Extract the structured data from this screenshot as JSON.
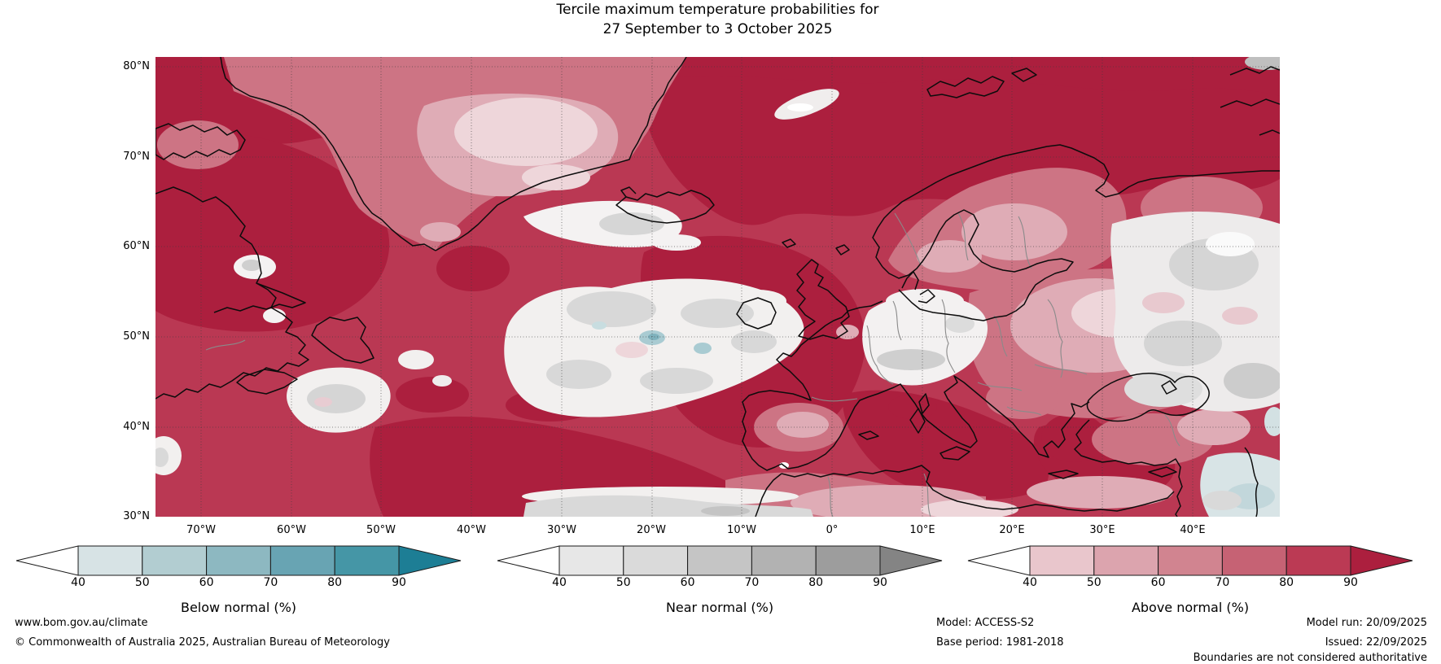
{
  "title": {
    "line1": "Tercile maximum temperature probabilities for",
    "line2": "27 September to 3 October 2025"
  },
  "map": {
    "lat_ticks": [
      "80°N",
      "70°N",
      "60°N",
      "50°N",
      "40°N",
      "30°N"
    ],
    "lon_ticks": [
      "70°W",
      "60°W",
      "50°W",
      "40°W",
      "30°W",
      "20°W",
      "10°W",
      "0°",
      "10°E",
      "20°E",
      "30°E",
      "40°E"
    ]
  },
  "legend": {
    "bars": [
      {
        "id": "below",
        "title": "Below normal (%)",
        "ticks": [
          "40",
          "50",
          "60",
          "70",
          "80",
          "90"
        ],
        "arrow_low_color": "#ffffff",
        "segment_colors": [
          "#d7e3e5",
          "#b2cdd1",
          "#8db8c1",
          "#68a4b3",
          "#4596a6",
          "#1d7e95"
        ]
      },
      {
        "id": "near",
        "title": "Near normal (%)",
        "ticks": [
          "40",
          "50",
          "60",
          "70",
          "80",
          "90"
        ],
        "arrow_low_color": "#ffffff",
        "segment_colors": [
          "#e7e7e7",
          "#dadada",
          "#c5c5c5",
          "#b2b2b2",
          "#9d9d9d",
          "#848484"
        ]
      },
      {
        "id": "above",
        "title": "Above normal (%)",
        "ticks": [
          "40",
          "50",
          "60",
          "70",
          "80",
          "90"
        ],
        "arrow_low_color": "#ffffff",
        "segment_colors": [
          "#e9c6cc",
          "#dca4ae",
          "#d18490",
          "#c66274",
          "#bb3a54",
          "#ac1f3e"
        ]
      }
    ]
  },
  "footer": {
    "site": "www.bom.gov.au/climate",
    "copyright": "© Commonwealth of Australia 2025, Australian Bureau of Meteorology",
    "model": "Model: ACCESS-S2",
    "base_period": "Base period: 1981-2018",
    "model_run": "Model run: 20/09/2025",
    "issued": "Issued: 22/09/2025",
    "disclaimer": "Boundaries are not considered authoritative"
  }
}
